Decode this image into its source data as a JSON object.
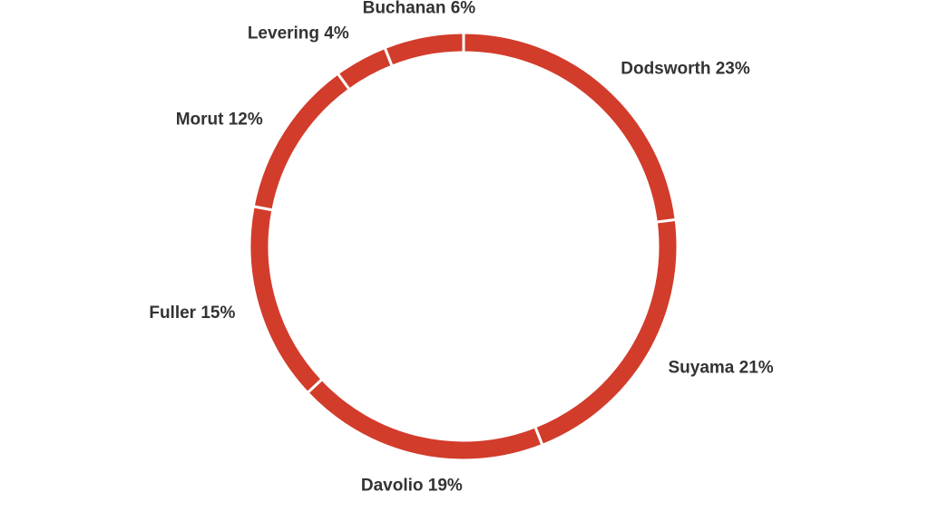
{
  "chart_data": {
    "type": "pie",
    "variant": "donut",
    "start": "top",
    "direction": "clockwise",
    "legend": "none",
    "colors": {
      "slice": "#d23c2b",
      "separator": "#ffffff",
      "label": "#333333",
      "background": "#ffffff"
    },
    "slices": [
      {
        "label": "Dodsworth",
        "value": 23,
        "label_text": "Dodsworth 23%"
      },
      {
        "label": "Suyama",
        "value": 21,
        "label_text": "Suyama 21%"
      },
      {
        "label": "Davolio",
        "value": 19,
        "label_text": "Davolio 19%"
      },
      {
        "label": "Fuller",
        "value": 15,
        "label_text": "Fuller 15%"
      },
      {
        "label": "Morut",
        "value": 12,
        "label_text": "Morut 12%"
      },
      {
        "label": "Levering",
        "value": 4,
        "label_text": "Levering 4%"
      },
      {
        "label": "Buchanan",
        "value": 6,
        "label_text": "Buchanan 6%"
      }
    ]
  }
}
